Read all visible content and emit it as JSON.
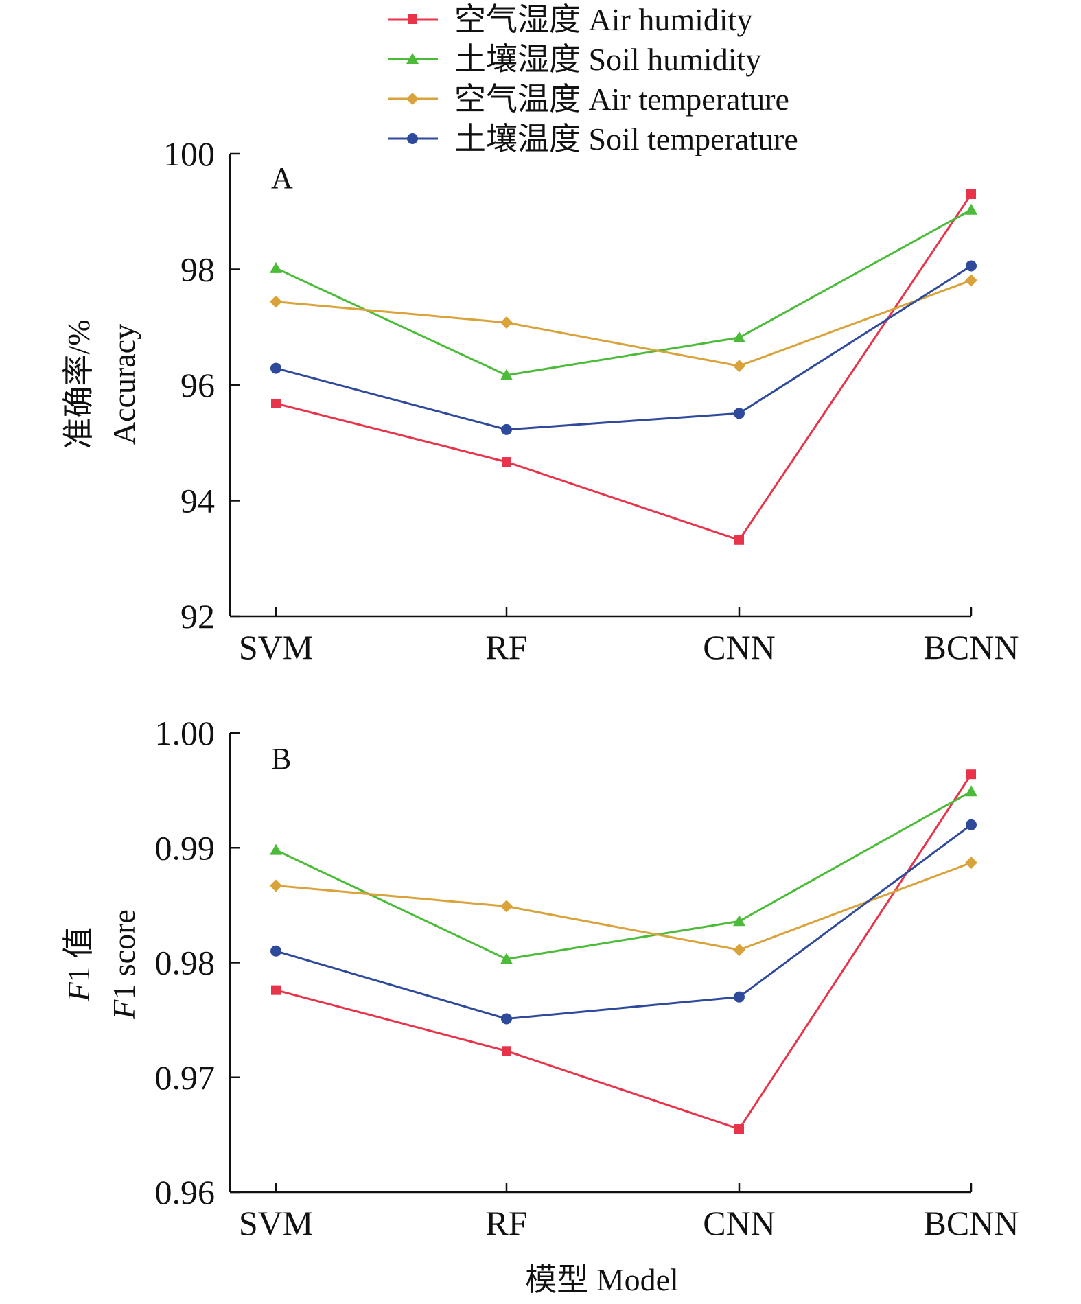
{
  "legend": {
    "items": [
      {
        "label": "空气湿度 Air humidity",
        "color": "#e8344a",
        "marker": "square"
      },
      {
        "label": "土壤湿度 Soil humidity",
        "color": "#4cbb3a",
        "marker": "triangle"
      },
      {
        "label": "空气温度 Air temperature",
        "color": "#d9a23b",
        "marker": "diamond"
      },
      {
        "label": "土壤温度 Soil temperature",
        "color": "#2f4a9b",
        "marker": "circle"
      }
    ]
  },
  "xaxis": {
    "title": "模型 Model"
  },
  "chart_data": [
    {
      "type": "line",
      "panel": "A",
      "categories": [
        "SVM",
        "RF",
        "CNN",
        "BCNN"
      ],
      "ylabel_cn": "准确率/%",
      "ylabel_en": "Accuracy",
      "ylim": [
        92,
        100
      ],
      "yticks": [
        92,
        94,
        96,
        98,
        100
      ],
      "ytick_labels": [
        "92",
        "94",
        "96",
        "98",
        "100"
      ],
      "series": [
        {
          "name": "空气湿度 Air humidity",
          "values": [
            95.68,
            94.67,
            93.32,
            99.3
          ]
        },
        {
          "name": "土壤湿度 Soil humidity",
          "values": [
            98.02,
            96.17,
            96.82,
            99.03
          ]
        },
        {
          "name": "空气温度 Air temperature",
          "values": [
            97.44,
            97.08,
            96.33,
            97.81
          ]
        },
        {
          "name": "土壤温度 Soil temperature",
          "values": [
            96.29,
            95.23,
            95.51,
            98.06
          ]
        }
      ]
    },
    {
      "type": "line",
      "panel": "B",
      "categories": [
        "SVM",
        "RF",
        "CNN",
        "BCNN"
      ],
      "ylabel_cn": "F1 值",
      "ylabel_en": "F1 score",
      "ylim": [
        0.96,
        1.0
      ],
      "yticks": [
        0.96,
        0.97,
        0.98,
        0.99,
        1.0
      ],
      "ytick_labels": [
        "0.96",
        "0.97",
        "0.98",
        "0.99",
        "1.00"
      ],
      "series": [
        {
          "name": "空气湿度 Air humidity",
          "values": [
            0.9776,
            0.9723,
            0.9655,
            0.9964
          ]
        },
        {
          "name": "土壤湿度 Soil humidity",
          "values": [
            0.9898,
            0.9803,
            0.9836,
            0.9949
          ]
        },
        {
          "name": "空气温度 Air temperature",
          "values": [
            0.9867,
            0.9849,
            0.9811,
            0.9887
          ]
        },
        {
          "name": "土壤温度 Soil temperature",
          "values": [
            0.981,
            0.9751,
            0.977,
            0.992
          ]
        }
      ]
    }
  ]
}
